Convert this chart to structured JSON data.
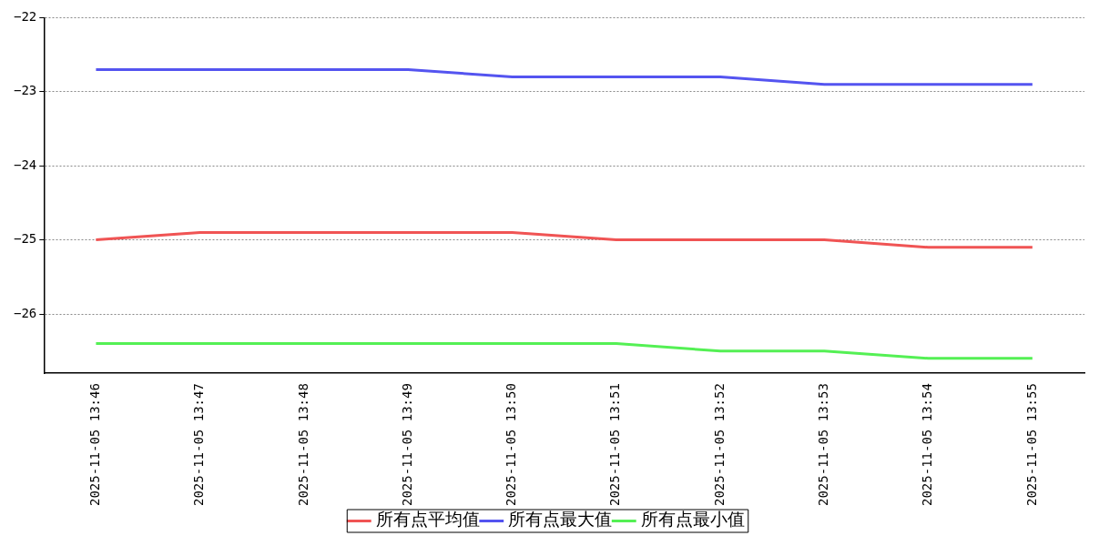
{
  "chart_data": {
    "type": "line",
    "categories": [
      "2025-11-05 13:46",
      "2025-11-05 13:47",
      "2025-11-05 13:48",
      "2025-11-05 13:49",
      "2025-11-05 13:50",
      "2025-11-05 13:51",
      "2025-11-05 13:52",
      "2025-11-05 13:53",
      "2025-11-05 13:54",
      "2025-11-05 13:55"
    ],
    "series": [
      {
        "name": "所有点平均值",
        "color": "#f05454",
        "values": [
          -25,
          -24.9,
          -24.9,
          -24.9,
          -24.9,
          -25,
          -25,
          -25,
          -25.1,
          -25.1
        ]
      },
      {
        "name": "所有点最大值",
        "color": "#5454f0",
        "values": [
          -22.7,
          -22.7,
          -22.7,
          -22.7,
          -22.8,
          -22.8,
          -22.8,
          -22.9,
          -22.9,
          -22.9
        ]
      },
      {
        "name": "所有点最小值",
        "color": "#54f054",
        "values": [
          -26.4,
          -26.4,
          -26.4,
          -26.4,
          -26.4,
          -26.4,
          -26.5,
          -26.5,
          -26.6,
          -26.6
        ]
      }
    ],
    "ylim": [
      -26.8,
      -22
    ],
    "yticks": [
      -26,
      -25,
      -24,
      -23,
      -22
    ],
    "grid": "y",
    "legend": "bottom",
    "marker": "none",
    "line_style": "solid"
  }
}
